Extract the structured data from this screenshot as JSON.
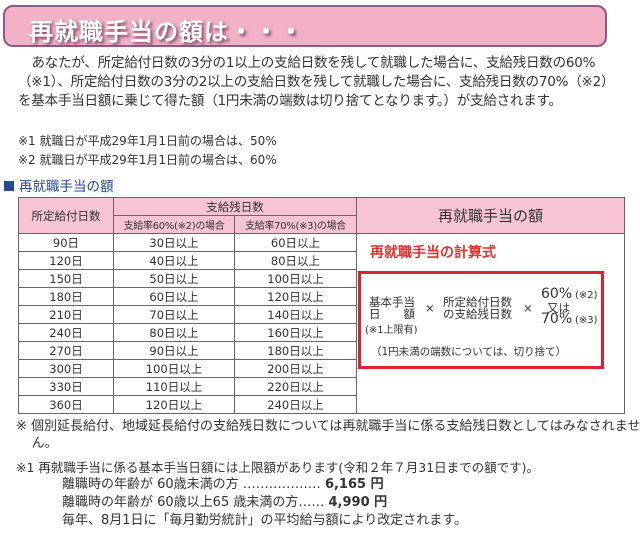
{
  "banner": {
    "title": "再就職手当の額は・・・"
  },
  "intro": {
    "paragraph": "あなたが、所定給付日数の3分の1以上の支給日数を残して就職した場合に、支給残日数の60%（※1）、所定給付日数の3分の2以上の支給日数を残して就職した場合に、支給残日数の70%（※2）を基本手当日額に乗じて得た額（1円未満の端数は切り捨てとなります。）が支給されます。",
    "note1": "※1 就職日が平成29年1月1日前の場合は、50%",
    "note2": "※2 就職日が平成29年1月1日前の場合は、60%"
  },
  "section": {
    "title": "再就職手当の額"
  },
  "table": {
    "col1": "所定給付日数",
    "group": "支給残日数",
    "col2": "支給率60%(※2)の場合",
    "col3": "支給率70%(※3)の場合",
    "col4": "再就職手当の額",
    "rows": [
      [
        "90日",
        "30日以上",
        "60日以上"
      ],
      [
        "120日",
        "40日以上",
        "80日以上"
      ],
      [
        "150日",
        "50日以上",
        "100日以上"
      ],
      [
        "180日",
        "60日以上",
        "120日以上"
      ],
      [
        "210日",
        "70日以上",
        "140日以上"
      ],
      [
        "240日",
        "80日以上",
        "160日以上"
      ],
      [
        "270日",
        "90日以上",
        "180日以上"
      ],
      [
        "300日",
        "100日以上",
        "200日以上"
      ],
      [
        "330日",
        "110日以上",
        "220日以上"
      ],
      [
        "360日",
        "120日以上",
        "240日以上"
      ]
    ]
  },
  "formula": {
    "title": "再就職手当の計算式",
    "term1a": "基本手当",
    "term1b": "日　　額",
    "cap": "(※1上限有)",
    "times": "×",
    "term2a": "所定給付日数",
    "term2b": "の支給残日数",
    "rate1": "60%",
    "rate1note": "(※2)",
    "or": "又は",
    "rate2": "70%",
    "rate2note": "(※3)",
    "rounding": "（1円未満の端数については、切り捨て）"
  },
  "footer": {
    "note_a": "※ 個別延長給付、地域延長給付の支給残日数については再就職手当に係る支給残日数としてはみなされません。",
    "note1": "※1 再就職手当に係る基本手当日額には上限額があります(令和２年７月31日までの額です)。",
    "line1_label": "離職時の年齢が 60歳未満の方 ………………",
    "line1_value": "6,165 円",
    "line2_label": "離職時の年齢が 60歳以上65 歳未満の方……",
    "line2_value": "4,990 円",
    "line3": "毎年、8月1日に「毎月勤労統計」の平均給与額により改定されます。"
  }
}
